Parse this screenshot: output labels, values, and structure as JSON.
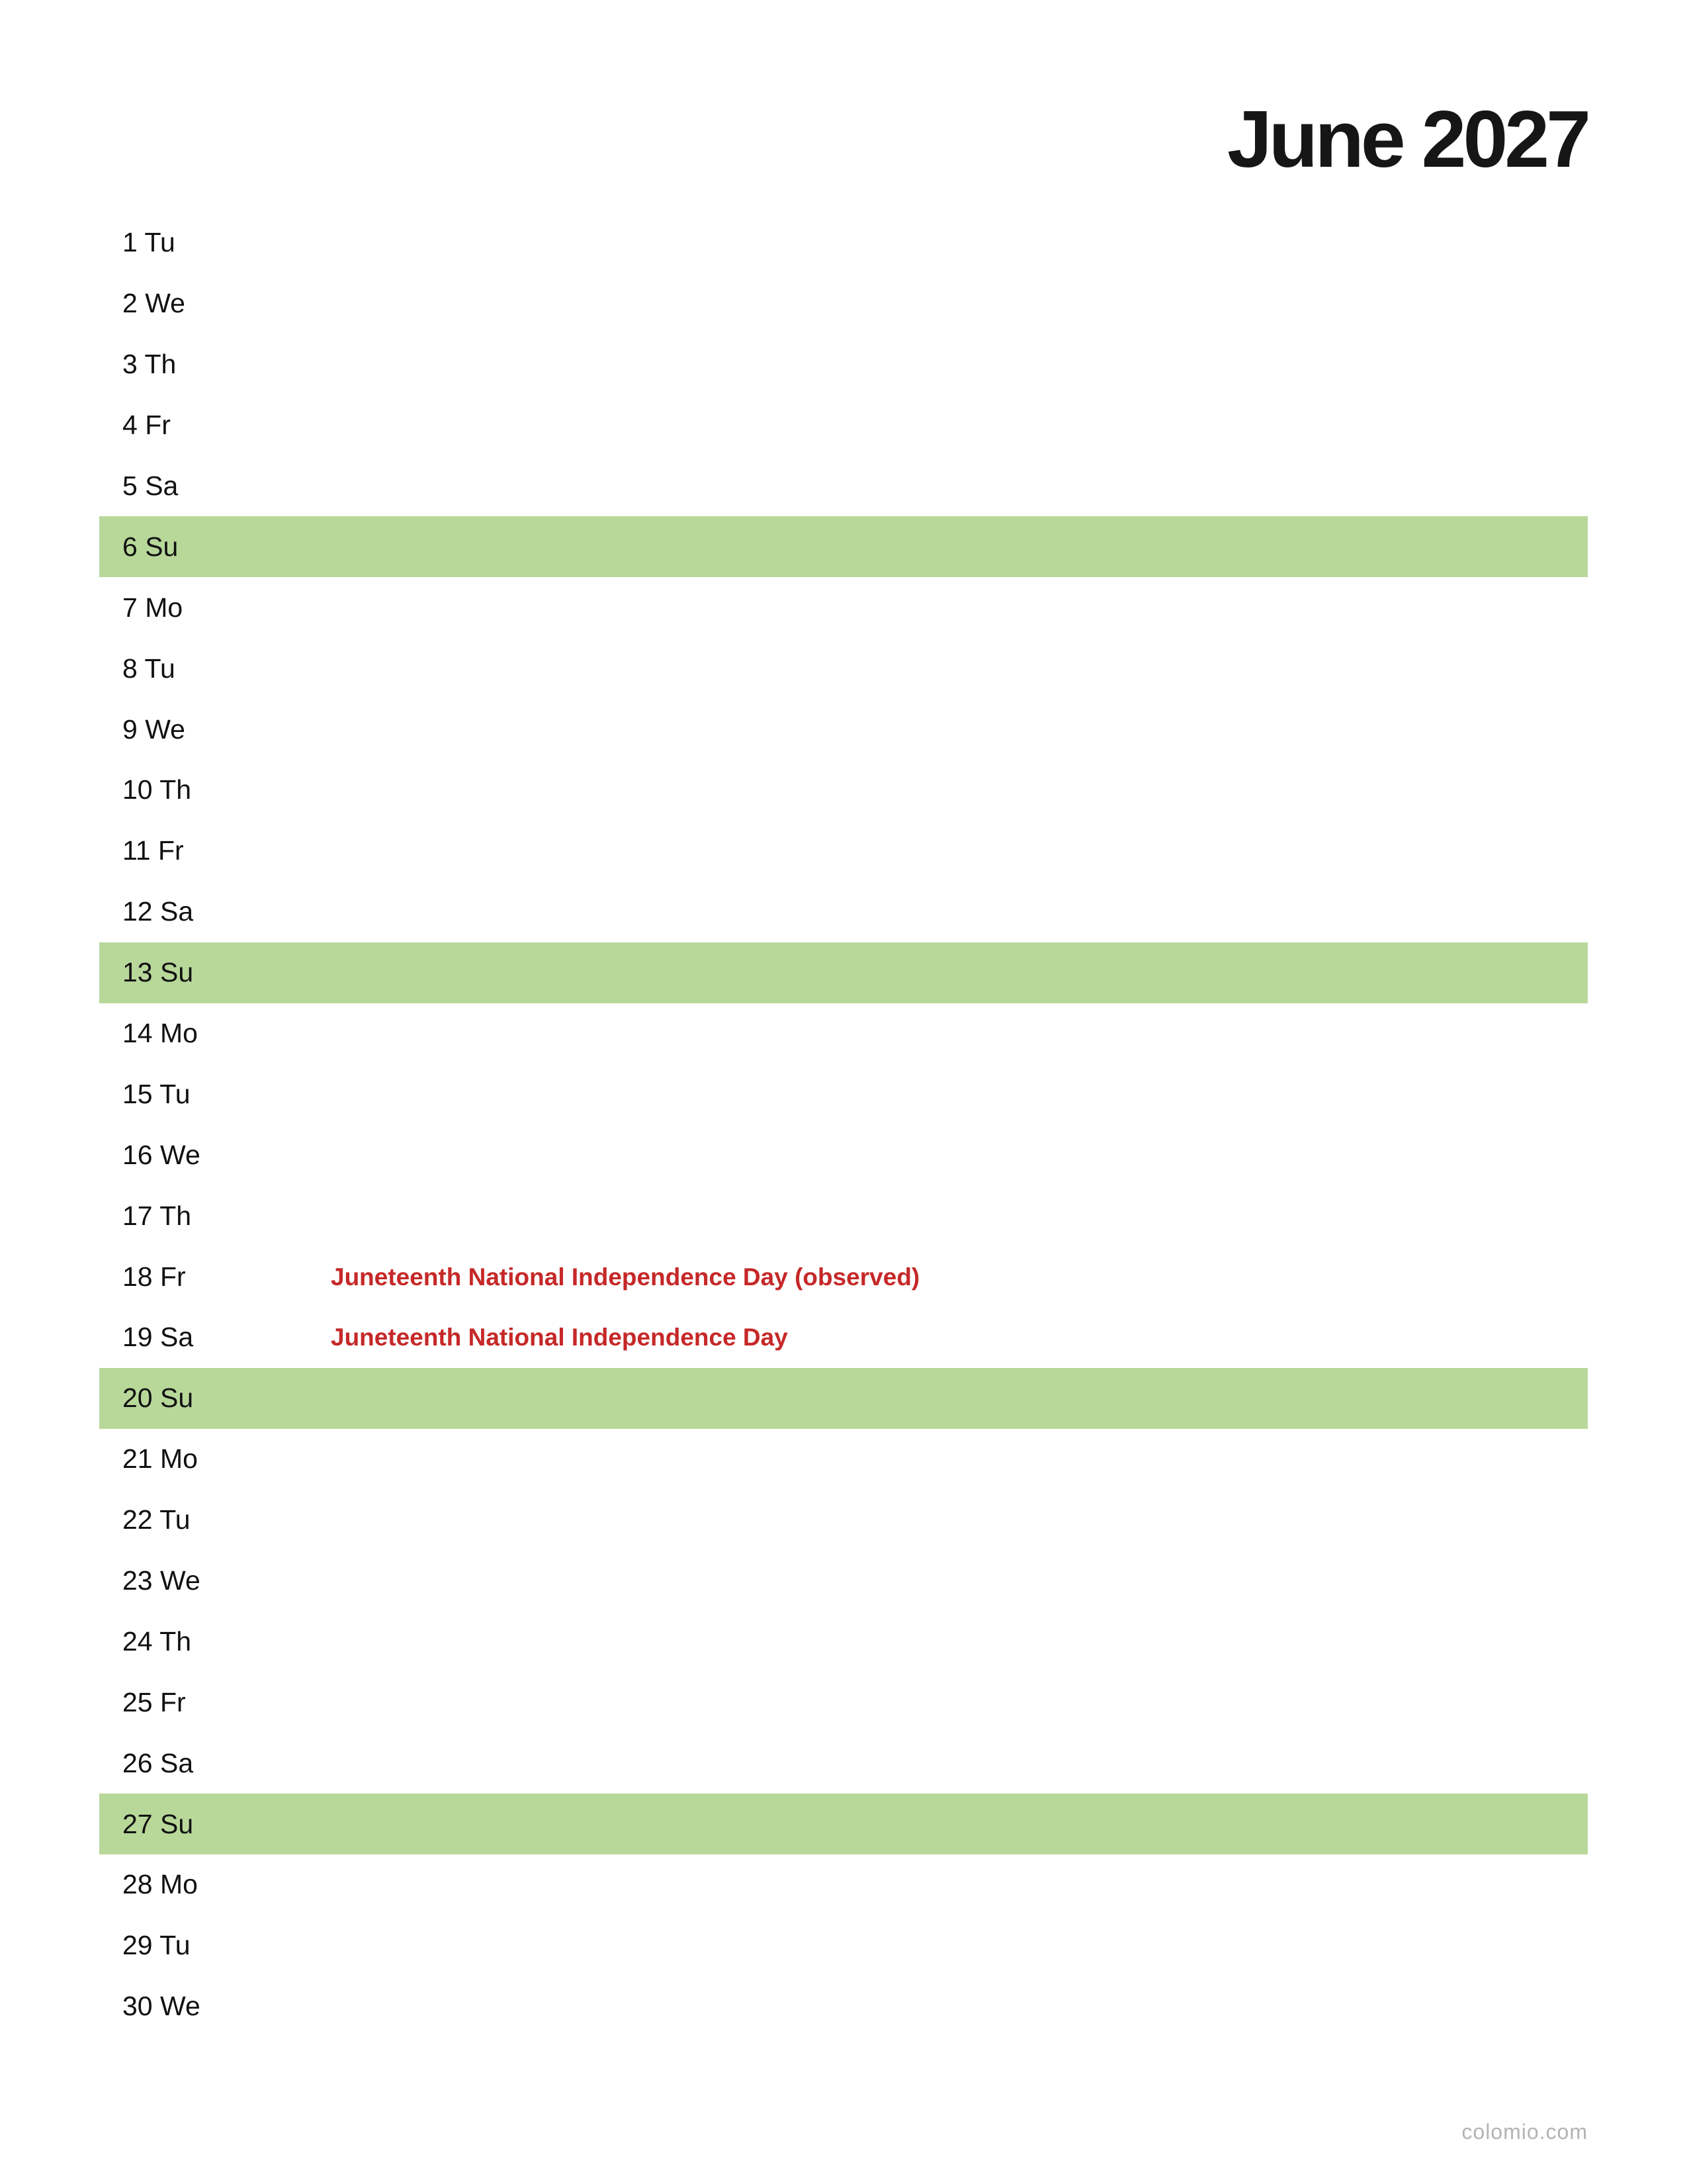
{
  "calendar": {
    "title": "June 2027",
    "colors": {
      "weekend_highlight": "#b8d89a",
      "holiday_text": "#c62828",
      "footer_text": "#b3b3b3"
    },
    "days": [
      {
        "label": "1 Tu",
        "weekend": false,
        "holiday": ""
      },
      {
        "label": "2 We",
        "weekend": false,
        "holiday": ""
      },
      {
        "label": "3 Th",
        "weekend": false,
        "holiday": ""
      },
      {
        "label": "4 Fr",
        "weekend": false,
        "holiday": ""
      },
      {
        "label": "5 Sa",
        "weekend": false,
        "holiday": ""
      },
      {
        "label": "6 Su",
        "weekend": true,
        "holiday": ""
      },
      {
        "label": "7 Mo",
        "weekend": false,
        "holiday": ""
      },
      {
        "label": "8 Tu",
        "weekend": false,
        "holiday": ""
      },
      {
        "label": "9 We",
        "weekend": false,
        "holiday": ""
      },
      {
        "label": "10 Th",
        "weekend": false,
        "holiday": ""
      },
      {
        "label": "11 Fr",
        "weekend": false,
        "holiday": ""
      },
      {
        "label": "12 Sa",
        "weekend": false,
        "holiday": ""
      },
      {
        "label": "13 Su",
        "weekend": true,
        "holiday": ""
      },
      {
        "label": "14 Mo",
        "weekend": false,
        "holiday": ""
      },
      {
        "label": "15 Tu",
        "weekend": false,
        "holiday": ""
      },
      {
        "label": "16 We",
        "weekend": false,
        "holiday": ""
      },
      {
        "label": "17 Th",
        "weekend": false,
        "holiday": ""
      },
      {
        "label": "18 Fr",
        "weekend": false,
        "holiday": "Juneteenth National Independence Day (observed)"
      },
      {
        "label": "19 Sa",
        "weekend": false,
        "holiday": "Juneteenth National Independence Day"
      },
      {
        "label": "20 Su",
        "weekend": true,
        "holiday": ""
      },
      {
        "label": "21 Mo",
        "weekend": false,
        "holiday": ""
      },
      {
        "label": "22 Tu",
        "weekend": false,
        "holiday": ""
      },
      {
        "label": "23 We",
        "weekend": false,
        "holiday": ""
      },
      {
        "label": "24 Th",
        "weekend": false,
        "holiday": ""
      },
      {
        "label": "25 Fr",
        "weekend": false,
        "holiday": ""
      },
      {
        "label": "26 Sa",
        "weekend": false,
        "holiday": ""
      },
      {
        "label": "27 Su",
        "weekend": true,
        "holiday": ""
      },
      {
        "label": "28 Mo",
        "weekend": false,
        "holiday": ""
      },
      {
        "label": "29 Tu",
        "weekend": false,
        "holiday": ""
      },
      {
        "label": "30 We",
        "weekend": false,
        "holiday": ""
      }
    ]
  },
  "footer": {
    "credit": "colomio.com"
  }
}
